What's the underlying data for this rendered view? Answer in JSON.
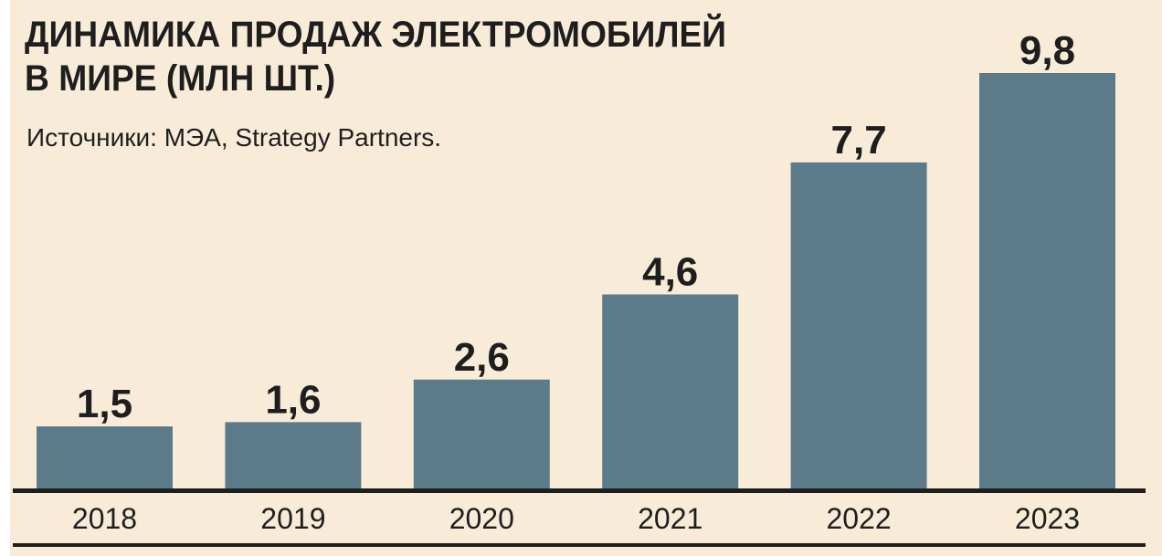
{
  "chart_data": {
    "type": "bar",
    "title_lines": [
      "ДИНАМИКА ПРОДАЖ ЭЛЕКТРОМОБИЛЕЙ",
      "В МИРЕ (МЛН ШТ.)"
    ],
    "subtitle": "Источники: МЭА, Strategy Partners.",
    "categories": [
      "2018",
      "2019",
      "2020",
      "2021",
      "2022",
      "2023"
    ],
    "values": [
      1.5,
      1.6,
      2.6,
      4.6,
      7.7,
      9.8
    ],
    "value_labels": [
      "1,5",
      "1,6",
      "2,6",
      "4,6",
      "7,7",
      "9,8"
    ],
    "ylim": [
      0,
      9.8
    ],
    "grid": false,
    "colors": {
      "bar": "#5b7b8a",
      "background": "#f8ecd8",
      "text": "#1e1e1e"
    }
  }
}
